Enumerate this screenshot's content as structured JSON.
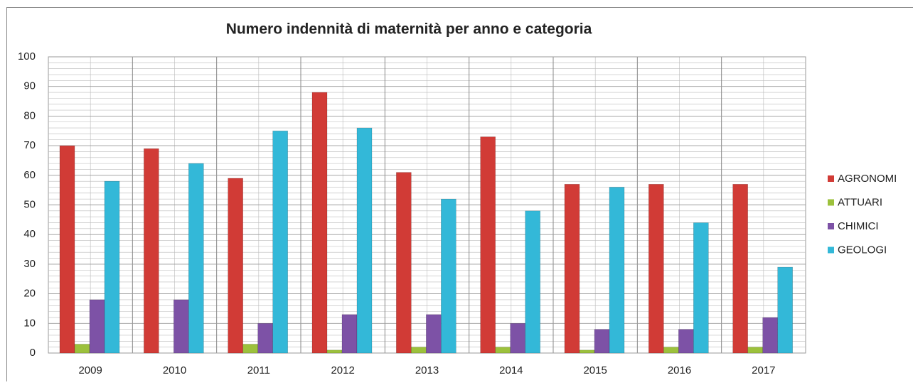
{
  "chart_data": {
    "type": "bar",
    "title": "Numero indennità di maternità per anno e categoria",
    "categories": [
      "2009",
      "2010",
      "2011",
      "2012",
      "2013",
      "2014",
      "2015",
      "2016",
      "2017"
    ],
    "series": [
      {
        "name": "AGRONOMI",
        "color": "#d13b36",
        "values": [
          70,
          69,
          59,
          88,
          61,
          73,
          57,
          57,
          57
        ]
      },
      {
        "name": "ATTUARI",
        "color": "#9cc13c",
        "values": [
          3,
          0,
          3,
          1,
          2,
          2,
          1,
          2,
          2
        ]
      },
      {
        "name": "CHIMICI",
        "color": "#7d52a6",
        "values": [
          18,
          18,
          10,
          13,
          13,
          10,
          8,
          8,
          12
        ]
      },
      {
        "name": "GEOLOGI",
        "color": "#33b8d8",
        "values": [
          58,
          64,
          75,
          76,
          52,
          48,
          56,
          44,
          29
        ]
      }
    ],
    "ylim": [
      0,
      100
    ],
    "yticks": [
      0,
      10,
      20,
      30,
      40,
      50,
      60,
      70,
      80,
      90,
      100
    ],
    "grid": true,
    "legend": "right"
  }
}
